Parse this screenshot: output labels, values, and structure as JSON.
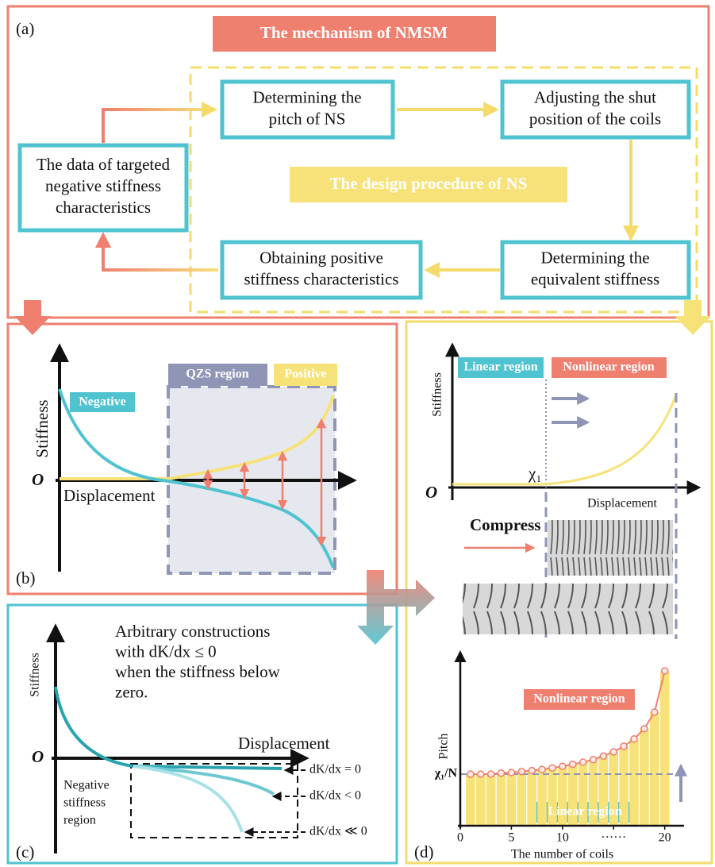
{
  "panel_a": {
    "label": "(a)",
    "title": "The mechanism of NMSM",
    "subtitle": "The design procedure of NS",
    "nodes": [
      {
        "lines": [
          "The data of targeted",
          "negative stiffness",
          "characteristics"
        ]
      },
      {
        "lines": [
          "Determining the",
          "pitch of NS"
        ]
      },
      {
        "lines": [
          "Adjusting the shut",
          "position of the coils"
        ]
      },
      {
        "lines": [
          "Determining the",
          "equivalent stiffness"
        ]
      },
      {
        "lines": [
          "Obtaining positive",
          "stiffness characteristics"
        ]
      }
    ]
  },
  "panel_b": {
    "label": "(b)",
    "y_axis": "Stiffness",
    "x_axis": "Displacement",
    "origin": "O",
    "negative": "Negative",
    "qzs": "QZS region",
    "positive": "Positive"
  },
  "panel_c": {
    "label": "(c)",
    "y_axis": "Stiffness",
    "x_axis": "Displacement",
    "origin": "O",
    "note": [
      "Arbitrary constructions",
      "with  dK/dx ≤ 0",
      "when the stiffness below",
      "zero."
    ],
    "region": [
      "Negative",
      "stiffness",
      "region"
    ],
    "curves": [
      "dK/dx = 0",
      "dK/dx < 0",
      "dK/dx ≪ 0"
    ]
  },
  "panel_d": {
    "label": "(d)",
    "top": {
      "y_axis": "Stiffness",
      "x_axis": "Displacement",
      "origin": "O",
      "x1": "χ₁",
      "linear": "Linear region",
      "nonlinear": "Nonlinear region",
      "compress": "Compress"
    },
    "chart_data": {
      "type": "bar",
      "x_label": "The number of coils",
      "y_label": "Pitch",
      "nonlinear": "Nonlinear region",
      "linear": "Linear region",
      "x": [
        1,
        2,
        3,
        4,
        5,
        6,
        7,
        8,
        9,
        10,
        11,
        12,
        13,
        14,
        15,
        16,
        17,
        18,
        19,
        20
      ],
      "values": [
        1.0,
        1.0,
        1.0,
        1.02,
        1.03,
        1.05,
        1.07,
        1.09,
        1.12,
        1.15,
        1.19,
        1.23,
        1.28,
        1.35,
        1.43,
        1.54,
        1.68,
        1.88,
        2.2,
        3.0
      ],
      "color": "#f7e27a",
      "line_color": "#ef7f6f",
      "xlim": [
        0,
        21.5
      ],
      "ylim": [
        0,
        3.2
      ],
      "xticks": [
        0,
        5,
        10,
        {
          "value": 15,
          "label": "······"
        },
        20
      ],
      "yticks": [
        {
          "value": 1,
          "label": "χ₁/N"
        }
      ]
    }
  }
}
